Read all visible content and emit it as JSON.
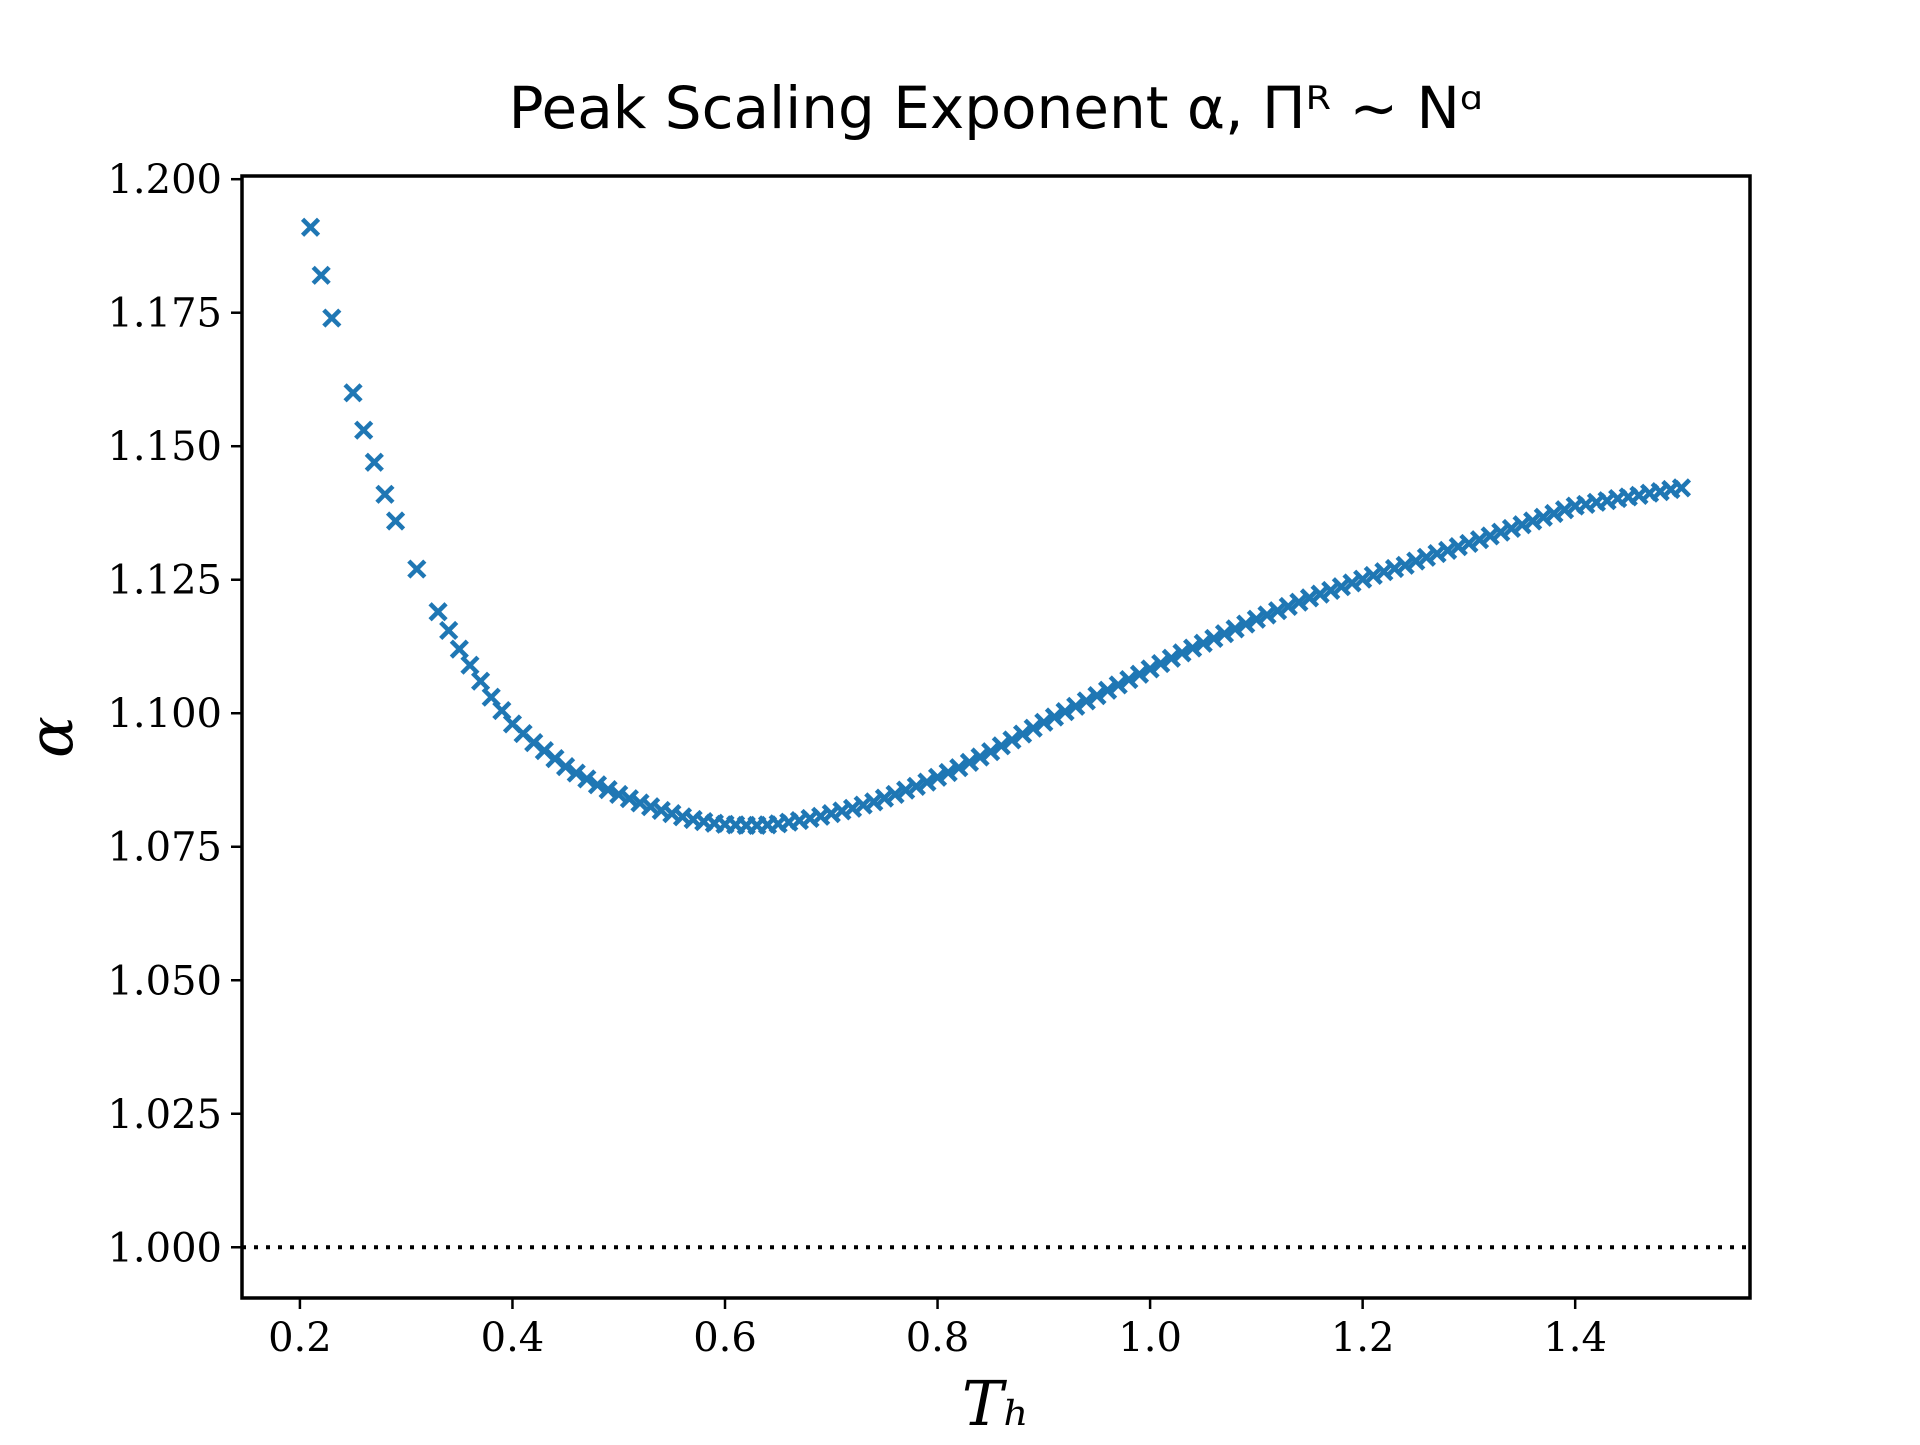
{
  "chart_data": {
    "type": "scatter",
    "title": "Peak Scaling Exponent α, Πᴿ ∼ Nᵅ",
    "x_label": "Tₕ",
    "y_label": "α",
    "color": "#1f77b4",
    "marker": "x",
    "reference_line": {
      "y": 1,
      "style": "dotted"
    },
    "xlim": [
      0.1455,
      1.5645
    ],
    "ylim": [
      0.9905,
      1.2006
    ],
    "xticks": [
      0.2,
      0.4,
      0.6,
      0.8,
      {
        "value": 1,
        "label": "1.0"
      },
      1.2,
      1.4
    ],
    "yticks": [
      {
        "value": 1,
        "label": "1.000"
      },
      {
        "value": 1.025,
        "label": "1.025"
      },
      {
        "value": 1.05,
        "label": "1.050"
      },
      {
        "value": 1.075,
        "label": "1.075"
      },
      {
        "value": 1.1,
        "label": "1.100"
      },
      {
        "value": 1.125,
        "label": "1.125"
      },
      {
        "value": 1.15,
        "label": "1.150"
      },
      {
        "value": 1.175,
        "label": "1.175"
      },
      {
        "value": 1.2,
        "label": "1.200"
      }
    ],
    "x": [
      0.21,
      0.22,
      0.23,
      0.25,
      0.26,
      0.27,
      0.28,
      0.29,
      0.31,
      0.33,
      0.34,
      0.35,
      0.36,
      0.37,
      0.38,
      0.39,
      0.4,
      0.41,
      0.42,
      0.43,
      0.44,
      0.45,
      0.46,
      0.47,
      0.48,
      0.49,
      0.5,
      0.51,
      0.52,
      0.53,
      0.54,
      0.55,
      0.56,
      0.57,
      0.58,
      0.59,
      0.6,
      0.61,
      0.62,
      0.63,
      0.64,
      0.65,
      0.66,
      0.67,
      0.68,
      0.69,
      0.7,
      0.71,
      0.72,
      0.73,
      0.74,
      0.75,
      0.76,
      0.77,
      0.78,
      0.79,
      0.8,
      0.81,
      0.82,
      0.83,
      0.84,
      0.85,
      0.86,
      0.87,
      0.88,
      0.89,
      0.9,
      0.91,
      0.92,
      0.93,
      0.94,
      0.95,
      0.96,
      0.97,
      0.98,
      0.99,
      1.0,
      1.01,
      1.02,
      1.03,
      1.04,
      1.05,
      1.06,
      1.07,
      1.08,
      1.09,
      1.1,
      1.11,
      1.12,
      1.13,
      1.14,
      1.15,
      1.16,
      1.17,
      1.18,
      1.19,
      1.2,
      1.21,
      1.22,
      1.23,
      1.24,
      1.25,
      1.26,
      1.27,
      1.28,
      1.29,
      1.3,
      1.31,
      1.32,
      1.33,
      1.34,
      1.35,
      1.36,
      1.37,
      1.38,
      1.39,
      1.4,
      1.41,
      1.42,
      1.43,
      1.44,
      1.45,
      1.46,
      1.47,
      1.48,
      1.49,
      1.5
    ],
    "values": [
      1.191,
      1.182,
      1.174,
      1.16,
      1.153,
      1.147,
      1.141,
      1.136,
      1.127,
      1.119,
      1.1155,
      1.112,
      1.109,
      1.106,
      1.103,
      1.1005,
      1.098,
      1.0962,
      1.0945,
      1.093,
      1.0915,
      1.09,
      1.0888,
      1.0877,
      1.0866,
      1.0857,
      1.0848,
      1.084,
      1.0832,
      1.0825,
      1.0818,
      1.0812,
      1.0806,
      1.0801,
      1.0797,
      1.0794,
      1.0792,
      1.0791,
      1.079,
      1.079,
      1.0791,
      1.0793,
      1.0796,
      1.0799,
      1.0803,
      1.0807,
      1.0812,
      1.0817,
      1.0822,
      1.0828,
      1.0834,
      1.0841,
      1.0848,
      1.0856,
      1.0863,
      1.0871,
      1.088,
      1.0889,
      1.0898,
      1.0908,
      1.0918,
      1.0928,
      1.0939,
      1.095,
      1.0961,
      1.0972,
      1.0983,
      1.0993,
      1.1003,
      1.1013,
      1.1023,
      1.1033,
      1.1043,
      1.1053,
      1.1063,
      1.1073,
      1.1083,
      1.1093,
      1.1103,
      1.1113,
      1.1122,
      1.1131,
      1.114,
      1.1149,
      1.1158,
      1.1167,
      1.1176,
      1.1184,
      1.1192,
      1.12,
      1.1208,
      1.1216,
      1.1223,
      1.123,
      1.1237,
      1.1244,
      1.1251,
      1.1258,
      1.1265,
      1.1271,
      1.1277,
      1.1285,
      1.1292,
      1.1299,
      1.1305,
      1.1312,
      1.1318,
      1.1325,
      1.1332,
      1.1339,
      1.1346,
      1.1353,
      1.136,
      1.1367,
      1.1374,
      1.1381,
      1.1388,
      1.1391,
      1.1395,
      1.1398,
      1.1402,
      1.1405,
      1.1408,
      1.1412,
      1.1415,
      1.1419,
      1.1422
    ]
  }
}
